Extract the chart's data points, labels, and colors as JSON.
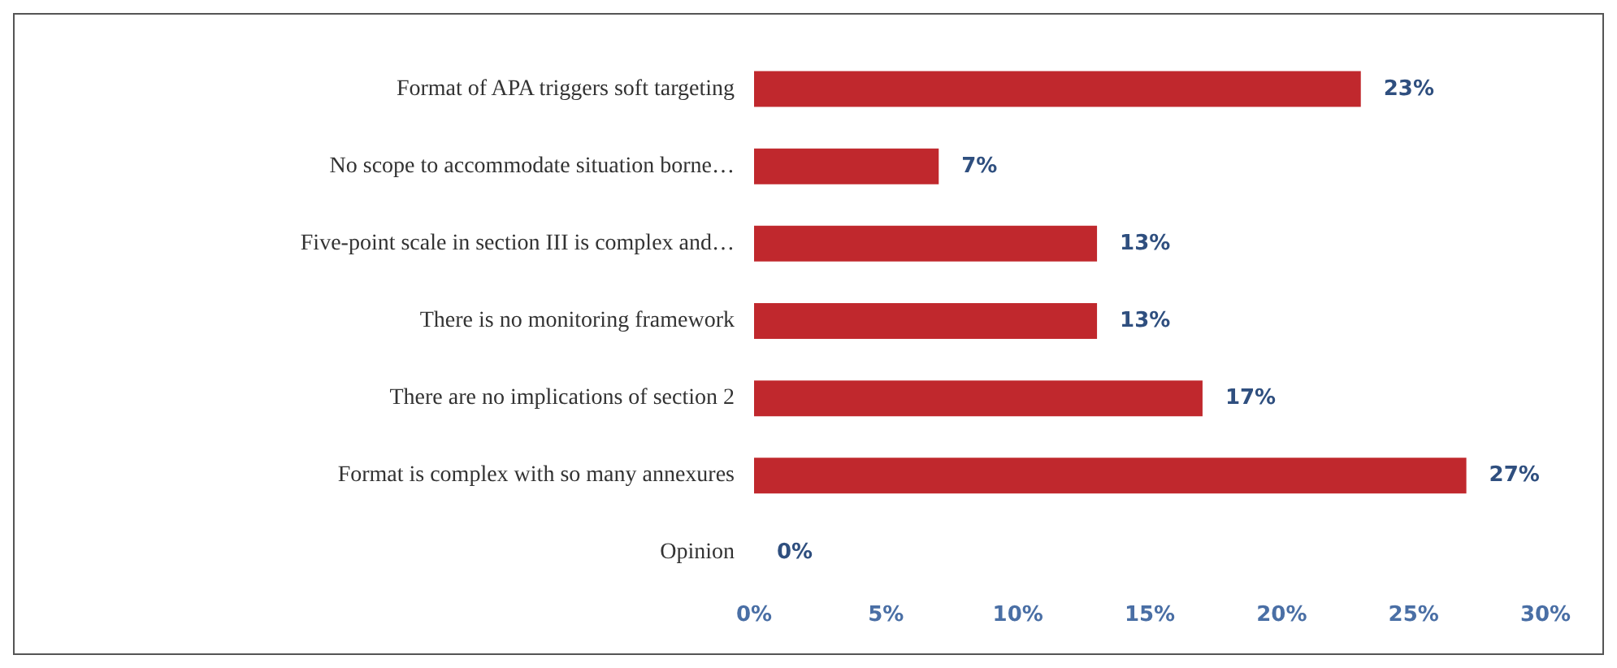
{
  "chart_data": {
    "type": "bar",
    "orientation": "horizontal",
    "categories": [
      "Format of APA triggers soft targeting",
      "No scope to accommodate situation borne…",
      "Five-point scale in section III is complex and…",
      "There is no monitoring framework",
      "There are no implications of section 2",
      "Format is complex with so many annexures",
      "Opinion"
    ],
    "values": [
      23,
      7,
      13,
      13,
      17,
      27,
      0
    ],
    "color": "#c0282d",
    "value_labels": [
      "23%",
      "7%",
      "13%",
      "13%",
      "17%",
      "27%",
      "0%"
    ],
    "xlim": [
      0,
      30
    ],
    "xticks": [
      {
        "value": 0,
        "label": "0%"
      },
      {
        "value": 5,
        "label": "5%"
      },
      {
        "value": 10,
        "label": "10%"
      },
      {
        "value": 15,
        "label": "15%"
      },
      {
        "value": 20,
        "label": "20%"
      },
      {
        "value": 25,
        "label": "25%"
      },
      {
        "value": 30,
        "label": "30%"
      }
    ],
    "grid": false
  }
}
